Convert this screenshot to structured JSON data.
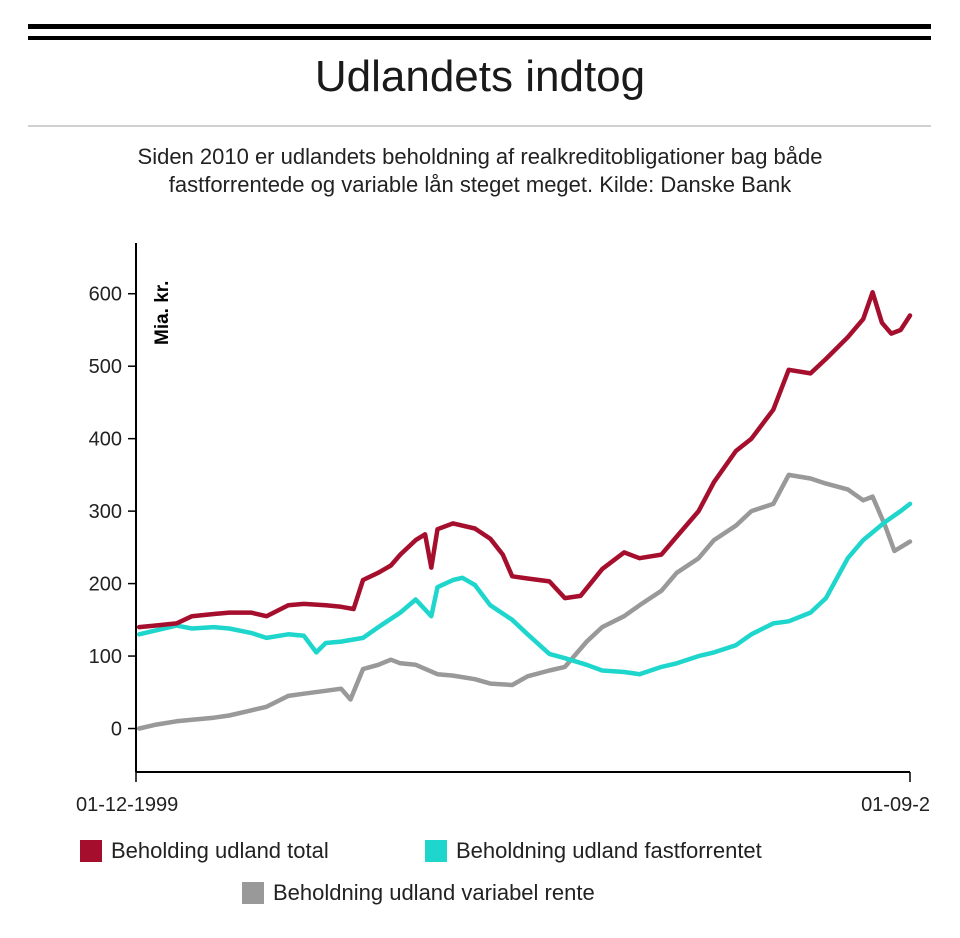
{
  "header": {
    "title": "Udlandets indtog",
    "subtitle_line1": "Siden 2010 er udlandets beholdning af realkreditobligationer bag både",
    "subtitle_line2": "fastforrentede og variable lån steget meget. Kilde: Danske Bank"
  },
  "chart_data": {
    "type": "line",
    "ylabel": "Mia. kr.",
    "ylim": [
      -60,
      670
    ],
    "yticks": [
      0,
      100,
      200,
      300,
      400,
      500,
      600
    ],
    "xlim": [
      "1999-12-01",
      "2020-09-01"
    ],
    "x_tick_labels": [
      "01-12-1999",
      "01-09-2"
    ],
    "grid": false,
    "legend_position": "bottom",
    "series": [
      {
        "name": "Beholding udland total",
        "color": "#a50f2d",
        "points": [
          [
            "2000-01",
            140
          ],
          [
            "2000-06",
            142
          ],
          [
            "2001-01",
            145
          ],
          [
            "2001-06",
            155
          ],
          [
            "2002-01",
            158
          ],
          [
            "2002-06",
            160
          ],
          [
            "2003-01",
            160
          ],
          [
            "2003-06",
            155
          ],
          [
            "2004-01",
            170
          ],
          [
            "2004-06",
            172
          ],
          [
            "2005-01",
            170
          ],
          [
            "2005-06",
            168
          ],
          [
            "2005-10",
            165
          ],
          [
            "2006-01",
            205
          ],
          [
            "2006-06",
            215
          ],
          [
            "2006-10",
            225
          ],
          [
            "2007-01",
            240
          ],
          [
            "2007-06",
            260
          ],
          [
            "2007-09",
            268
          ],
          [
            "2007-11",
            222
          ],
          [
            "2008-01",
            275
          ],
          [
            "2008-06",
            283
          ],
          [
            "2009-01",
            276
          ],
          [
            "2009-06",
            262
          ],
          [
            "2009-10",
            240
          ],
          [
            "2010-01",
            210
          ],
          [
            "2010-06",
            207
          ],
          [
            "2011-01",
            203
          ],
          [
            "2011-06",
            180
          ],
          [
            "2011-11",
            183
          ],
          [
            "2012-06",
            220
          ],
          [
            "2013-01",
            243
          ],
          [
            "2013-06",
            235
          ],
          [
            "2014-01",
            240
          ],
          [
            "2014-06",
            265
          ],
          [
            "2015-01",
            300
          ],
          [
            "2015-06",
            340
          ],
          [
            "2016-01",
            383
          ],
          [
            "2016-06",
            400
          ],
          [
            "2017-01",
            440
          ],
          [
            "2017-06",
            495
          ],
          [
            "2018-01",
            490
          ],
          [
            "2018-06",
            510
          ],
          [
            "2019-01",
            540
          ],
          [
            "2019-06",
            565
          ],
          [
            "2019-09",
            602
          ],
          [
            "2019-12",
            560
          ],
          [
            "2020-03",
            545
          ],
          [
            "2020-06",
            550
          ],
          [
            "2020-09",
            570
          ]
        ]
      },
      {
        "name": "Beholdning udland fastforrentet",
        "color": "#1fd6cd",
        "points": [
          [
            "2000-01",
            130
          ],
          [
            "2000-06",
            135
          ],
          [
            "2001-01",
            142
          ],
          [
            "2001-06",
            138
          ],
          [
            "2002-01",
            140
          ],
          [
            "2002-06",
            138
          ],
          [
            "2003-01",
            132
          ],
          [
            "2003-06",
            125
          ],
          [
            "2004-01",
            130
          ],
          [
            "2004-06",
            128
          ],
          [
            "2004-10",
            105
          ],
          [
            "2005-01",
            118
          ],
          [
            "2005-06",
            120
          ],
          [
            "2006-01",
            125
          ],
          [
            "2006-06",
            140
          ],
          [
            "2007-01",
            160
          ],
          [
            "2007-06",
            178
          ],
          [
            "2007-11",
            155
          ],
          [
            "2008-01",
            195
          ],
          [
            "2008-06",
            205
          ],
          [
            "2008-09",
            208
          ],
          [
            "2009-01",
            198
          ],
          [
            "2009-06",
            170
          ],
          [
            "2010-01",
            150
          ],
          [
            "2010-06",
            130
          ],
          [
            "2011-01",
            103
          ],
          [
            "2011-06",
            97
          ],
          [
            "2012-01",
            88
          ],
          [
            "2012-06",
            80
          ],
          [
            "2013-01",
            78
          ],
          [
            "2013-06",
            75
          ],
          [
            "2014-01",
            85
          ],
          [
            "2014-06",
            90
          ],
          [
            "2015-01",
            100
          ],
          [
            "2015-06",
            105
          ],
          [
            "2016-01",
            115
          ],
          [
            "2016-06",
            130
          ],
          [
            "2017-01",
            145
          ],
          [
            "2017-06",
            148
          ],
          [
            "2018-01",
            160
          ],
          [
            "2018-06",
            180
          ],
          [
            "2019-01",
            235
          ],
          [
            "2019-06",
            260
          ],
          [
            "2020-01",
            285
          ],
          [
            "2020-06",
            300
          ],
          [
            "2020-09",
            310
          ]
        ]
      },
      {
        "name": "Beholdning udland variabel rente",
        "color": "#999999",
        "points": [
          [
            "2000-01",
            0
          ],
          [
            "2000-06",
            5
          ],
          [
            "2001-01",
            10
          ],
          [
            "2001-06",
            12
          ],
          [
            "2002-01",
            15
          ],
          [
            "2002-06",
            18
          ],
          [
            "2003-01",
            25
          ],
          [
            "2003-06",
            30
          ],
          [
            "2004-01",
            45
          ],
          [
            "2004-06",
            48
          ],
          [
            "2005-01",
            52
          ],
          [
            "2005-06",
            55
          ],
          [
            "2005-09",
            40
          ],
          [
            "2006-01",
            82
          ],
          [
            "2006-06",
            88
          ],
          [
            "2006-10",
            95
          ],
          [
            "2007-01",
            90
          ],
          [
            "2007-06",
            88
          ],
          [
            "2008-01",
            75
          ],
          [
            "2008-06",
            73
          ],
          [
            "2009-01",
            68
          ],
          [
            "2009-06",
            62
          ],
          [
            "2010-01",
            60
          ],
          [
            "2010-06",
            72
          ],
          [
            "2011-01",
            80
          ],
          [
            "2011-06",
            85
          ],
          [
            "2012-01",
            120
          ],
          [
            "2012-06",
            140
          ],
          [
            "2013-01",
            155
          ],
          [
            "2013-06",
            170
          ],
          [
            "2014-01",
            190
          ],
          [
            "2014-06",
            215
          ],
          [
            "2015-01",
            235
          ],
          [
            "2015-06",
            260
          ],
          [
            "2016-01",
            280
          ],
          [
            "2016-06",
            300
          ],
          [
            "2017-01",
            310
          ],
          [
            "2017-06",
            350
          ],
          [
            "2018-01",
            345
          ],
          [
            "2018-06",
            338
          ],
          [
            "2019-01",
            330
          ],
          [
            "2019-06",
            315
          ],
          [
            "2019-09",
            320
          ],
          [
            "2020-01",
            280
          ],
          [
            "2020-04",
            245
          ],
          [
            "2020-09",
            258
          ]
        ]
      }
    ]
  }
}
